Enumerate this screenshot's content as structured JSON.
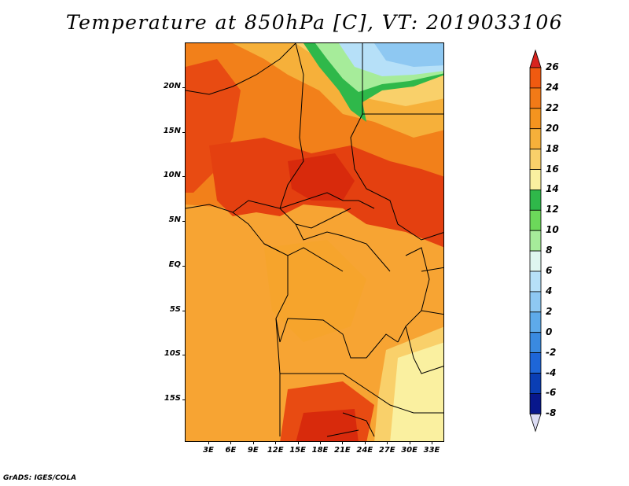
{
  "title": "Temperature at 850hPa [C], VT: 2019033106",
  "credit": "GrADS: IGES/COLA",
  "map": {
    "lat_labels": [
      "20N",
      "15N",
      "10N",
      "5N",
      "EQ",
      "5S",
      "10S",
      "15S"
    ],
    "lon_labels": [
      "3E",
      "6E",
      "9E",
      "12E",
      "15E",
      "18E",
      "21E",
      "24E",
      "27E",
      "30E",
      "33E"
    ]
  },
  "colorbar": {
    "labels": [
      "26",
      "24",
      "22",
      "20",
      "18",
      "16",
      "14",
      "12",
      "10",
      "8",
      "6",
      "4",
      "2",
      "0",
      "-2",
      "-4",
      "-6",
      "-8"
    ],
    "colors": [
      "#e83b0a",
      "#f05a10",
      "#f27a17",
      "#f4941f",
      "#f6b03a",
      "#f9d06a",
      "#faf0a0",
      "#2fb84a",
      "#6cd85a",
      "#a6ec9a",
      "#dff6f0",
      "#b6e0f8",
      "#8ec8f2",
      "#5eaaea",
      "#3a8ae0",
      "#1e66d8",
      "#0a3eb4",
      "#08178c"
    ],
    "top_triangle_color": "#d8241f",
    "bottom_triangle_color": "#dcdcf4"
  }
}
